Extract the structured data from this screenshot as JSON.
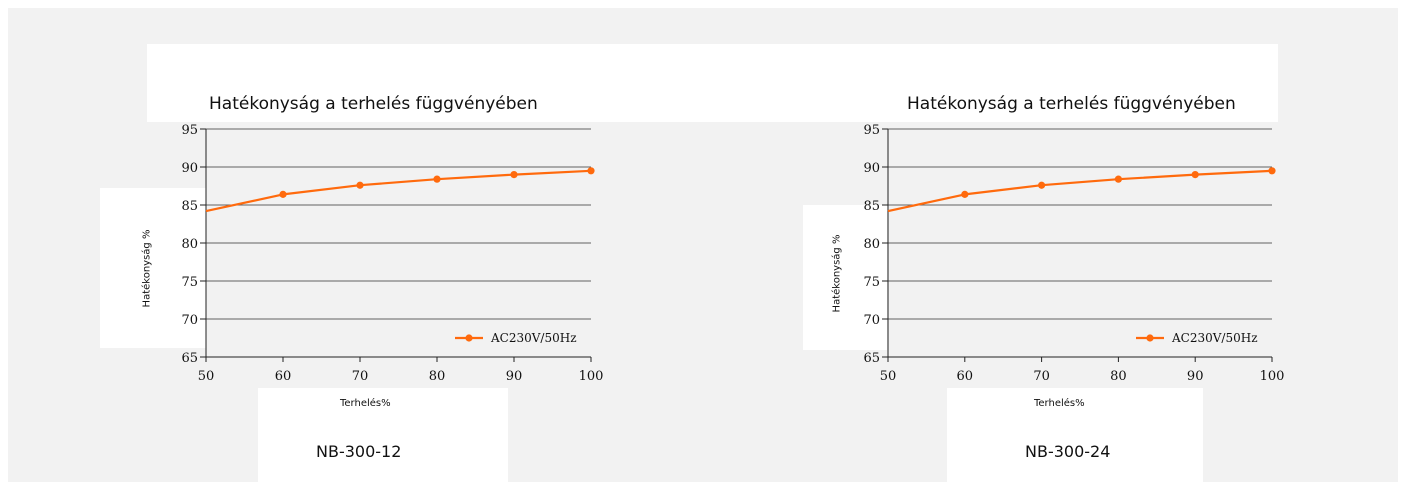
{
  "chart_data": [
    {
      "type": "line",
      "title": "Hatékonyság a terhelés függvényében",
      "xlabel": "Terhelés%",
      "ylabel": "Hatékonyság %",
      "caption": "NB-300-12",
      "x": [
        50,
        60,
        70,
        80,
        90,
        100
      ],
      "xlim": [
        50,
        100
      ],
      "ylim": [
        65,
        95
      ],
      "yticks": [
        65,
        70,
        75,
        80,
        85,
        90,
        95
      ],
      "grid": true,
      "legend_position": "bottom-right",
      "series": [
        {
          "name": "AC230V/50Hz",
          "color": "#ff6a0d",
          "x": [
            50,
            60,
            70,
            80,
            90,
            100
          ],
          "values": [
            84.2,
            86.4,
            87.6,
            88.4,
            89.0,
            89.5
          ],
          "markers_from_index": 1
        }
      ]
    },
    {
      "type": "line",
      "title": "Hatékonyság a terhelés függvényében",
      "xlabel": "Terhelés%",
      "ylabel": "Hatékonyság %",
      "caption": "NB-300-24",
      "x": [
        50,
        60,
        70,
        80,
        90,
        100
      ],
      "xlim": [
        50,
        100
      ],
      "ylim": [
        65,
        95
      ],
      "yticks": [
        65,
        70,
        75,
        80,
        85,
        90,
        95
      ],
      "grid": true,
      "legend_position": "bottom-right",
      "series": [
        {
          "name": "AC230V/50Hz",
          "color": "#ff6a0d",
          "x": [
            50,
            60,
            70,
            80,
            90,
            100
          ],
          "values": [
            84.2,
            86.4,
            87.6,
            88.4,
            89.0,
            89.5
          ],
          "markers_from_index": 1
        }
      ]
    }
  ],
  "colors": {
    "page_background": "#f2f2f2",
    "panel_background": "#ffffff",
    "plot_background": "#f2f2f2",
    "axis": "#222222",
    "grid": "#333333",
    "series": "#ff6a0d"
  }
}
